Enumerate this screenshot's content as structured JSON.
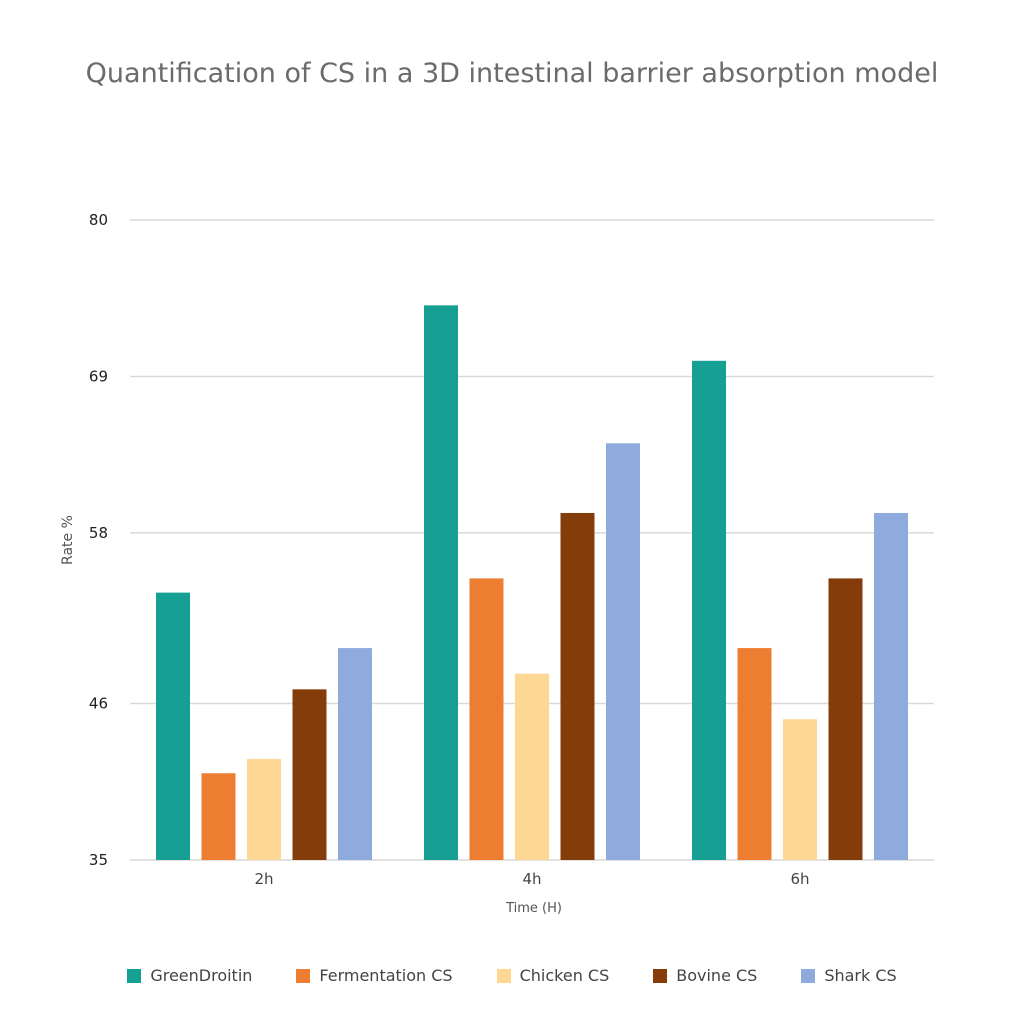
{
  "chart_data": {
    "type": "bar",
    "title": "Quantification of CS in a 3D intestinal barrier absorption model",
    "xlabel": "Time (H)",
    "ylabel": "Rate %",
    "ylim": [
      35,
      80
    ],
    "yticks": [
      "80",
      "69",
      "58",
      "46",
      "35"
    ],
    "ytick_values": [
      80,
      69,
      58,
      46,
      35
    ],
    "categories": [
      "2h",
      "4h",
      "6h"
    ],
    "grid": true,
    "legend_position": "bottom",
    "series": [
      {
        "name": "GreenDroitin",
        "color": "#16A093",
        "values": [
          53.8,
          74.0,
          70.1
        ]
      },
      {
        "name": "Fermentation CS",
        "color": "#ED7D31",
        "values": [
          41.1,
          54.8,
          49.9
        ]
      },
      {
        "name": "Chicken CS",
        "color": "#FDD794",
        "values": [
          42.1,
          48.1,
          44.9
        ]
      },
      {
        "name": "Bovine CS",
        "color": "#843C0B",
        "values": [
          47.0,
          59.4,
          54.8
        ]
      },
      {
        "name": "Shark CS",
        "color": "#8FAADC",
        "values": [
          49.9,
          64.3,
          59.4
        ]
      }
    ]
  }
}
